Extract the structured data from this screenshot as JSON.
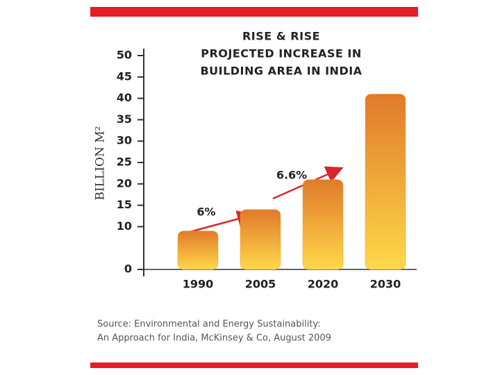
{
  "chart_data": {
    "type": "bar",
    "title": [
      "RISE & RISE",
      "PROJECTED INCREASE IN",
      "BUILDING AREA IN INDIA"
    ],
    "y_label": "BILLION M²",
    "categories": [
      "1990",
      "2005",
      "2020",
      "2030"
    ],
    "values": [
      9,
      14,
      21,
      41
    ],
    "color": "#f0a030",
    "ylim": [
      0,
      50
    ],
    "yticks": [
      0,
      10,
      15,
      20,
      25,
      30,
      35,
      40,
      45,
      50
    ],
    "annotations": [
      "6%",
      "6.6%"
    ],
    "source": [
      "Source: Environmental and Energy Sustainability:",
      "An Approach for India, McKinsey & Co, August 2009"
    ]
  }
}
